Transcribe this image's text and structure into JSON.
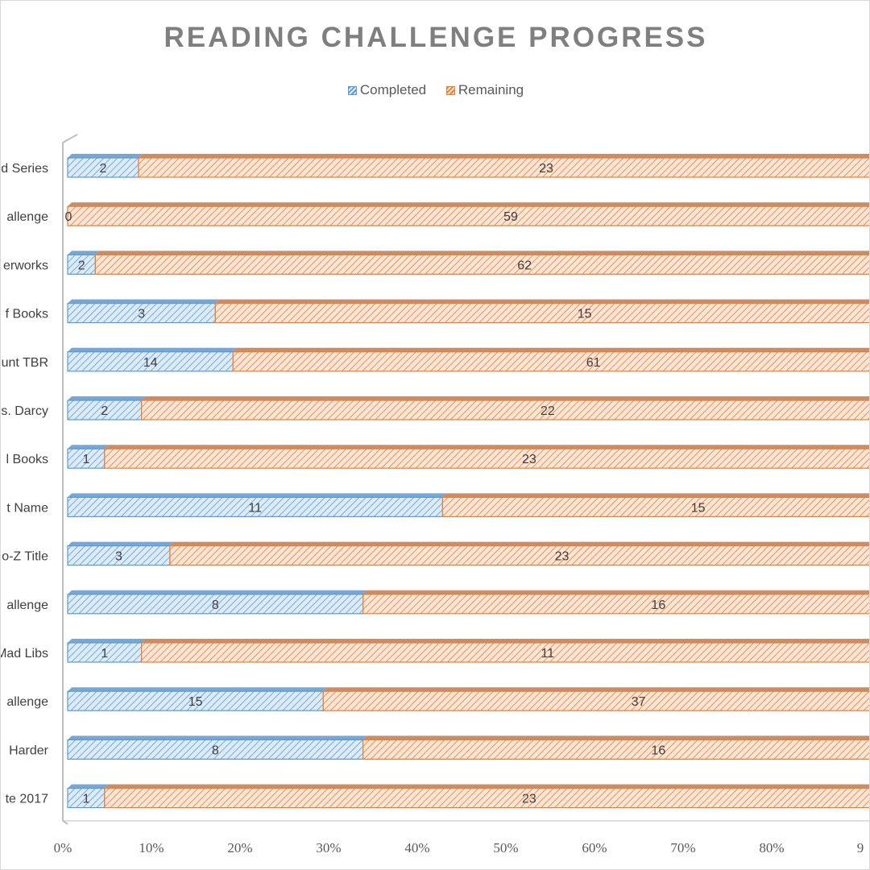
{
  "colors": {
    "completed_fill": "#ddebf7",
    "completed_stroke": "#5b9bd5",
    "completed_top": "#7aa6d1",
    "remaining_fill": "#fbe5d6",
    "remaining_stroke": "#ed7d31",
    "remaining_top": "#c58f6e",
    "axis": "#bfbfbf"
  },
  "chart_data": {
    "type": "bar",
    "orientation": "horizontal",
    "stacking": "percent",
    "title": "READING CHALLENGE PROGRESS",
    "legend": [
      "Completed",
      "Remaining"
    ],
    "legend_position": "top",
    "categories": [
      "d Series",
      "allenge",
      "erworks",
      "f Books",
      "unt TBR",
      "s. Darcy",
      "l Books",
      "t Name",
      "o-Z Title",
      "allenge",
      "Mad Libs",
      "allenge",
      "Harder",
      "te 2017"
    ],
    "series": [
      {
        "name": "Completed",
        "values": [
          2,
          0,
          2,
          3,
          14,
          2,
          1,
          11,
          3,
          8,
          1,
          15,
          8,
          1
        ]
      },
      {
        "name": "Remaining",
        "values": [
          23,
          59,
          62,
          15,
          61,
          22,
          23,
          15,
          23,
          16,
          11,
          37,
          16,
          23
        ]
      }
    ],
    "x_ticks": [
      "0%",
      "10%",
      "20%",
      "30%",
      "40%",
      "50%",
      "60%",
      "70%",
      "80%",
      "9"
    ],
    "xlim": [
      0,
      1
    ],
    "grid": false
  }
}
